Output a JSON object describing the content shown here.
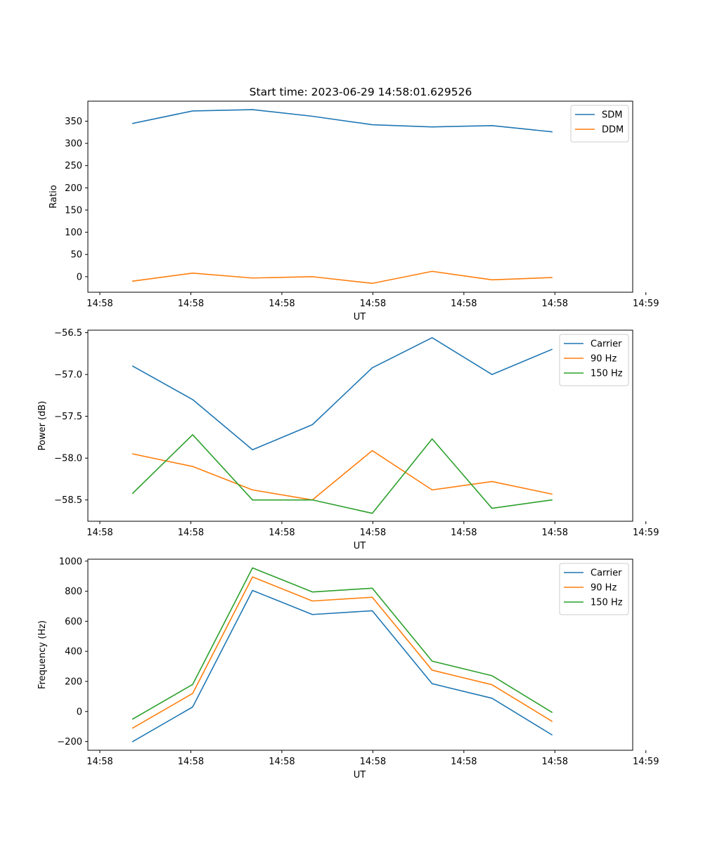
{
  "figure": {
    "title": "Start time: 2023-06-29 14:58:01.629526"
  },
  "chart_data": [
    {
      "type": "line",
      "xlabel": "UT",
      "ylabel": "Ratio",
      "x_tick_labels": [
        "14:58",
        "14:58",
        "14:58",
        "14:58",
        "14:58",
        "14:58",
        "14:59"
      ],
      "y_ticks": [
        0,
        50,
        100,
        150,
        200,
        250,
        300,
        350
      ],
      "ylim": [
        -35,
        395
      ],
      "legend_position": "upper-right",
      "series": [
        {
          "name": "SDM",
          "color": "#1f77b4",
          "values": [
            345,
            373,
            376,
            361,
            342,
            337,
            340,
            326
          ]
        },
        {
          "name": "DDM",
          "color": "#ff7f0e",
          "values": [
            -10,
            8,
            -3,
            0,
            -15,
            12,
            -7,
            -2
          ]
        }
      ]
    },
    {
      "type": "line",
      "xlabel": "UT",
      "ylabel": "Power (dB)",
      "x_tick_labels": [
        "14:58",
        "14:58",
        "14:58",
        "14:58",
        "14:58",
        "14:58",
        "14:59"
      ],
      "y_ticks": [
        -58.5,
        -58.0,
        -57.5,
        -57.0,
        -56.5
      ],
      "y_tick_labels": [
        "−58.5",
        "−58.0",
        "−57.5",
        "−57.0",
        "−56.5"
      ],
      "ylim": [
        -58.755,
        -56.47
      ],
      "legend_position": "upper-right",
      "series": [
        {
          "name": "Carrier",
          "color": "#1f77b4",
          "values": [
            -56.9,
            -57.3,
            -57.9,
            -57.6,
            -56.92,
            -56.56,
            -57.0,
            -56.7
          ]
        },
        {
          "name": "90 Hz",
          "color": "#ff7f0e",
          "values": [
            -57.95,
            -58.1,
            -58.38,
            -58.5,
            -57.91,
            -58.38,
            -58.28,
            -58.43
          ]
        },
        {
          "name": "150 Hz",
          "color": "#2ca02c",
          "values": [
            -58.42,
            -57.72,
            -58.5,
            -58.5,
            -58.66,
            -57.77,
            -58.6,
            -58.5
          ]
        }
      ]
    },
    {
      "type": "line",
      "xlabel": "UT",
      "ylabel": "Frequency (Hz)",
      "x_tick_labels": [
        "14:58",
        "14:58",
        "14:58",
        "14:58",
        "14:58",
        "14:58",
        "14:59"
      ],
      "y_ticks": [
        -200,
        0,
        200,
        400,
        600,
        800,
        1000
      ],
      "y_tick_labels": [
        "−200",
        "0",
        "200",
        "400",
        "600",
        "800",
        "1000"
      ],
      "ylim": [
        -258,
        1013
      ],
      "legend_position": "upper-right",
      "series": [
        {
          "name": "Carrier",
          "color": "#1f77b4",
          "values": [
            -200,
            30,
            805,
            645,
            670,
            185,
            88,
            -155
          ]
        },
        {
          "name": "90 Hz",
          "color": "#ff7f0e",
          "values": [
            -110,
            120,
            895,
            735,
            760,
            275,
            178,
            -65
          ]
        },
        {
          "name": "150 Hz",
          "color": "#2ca02c",
          "values": [
            -50,
            180,
            955,
            795,
            820,
            335,
            238,
            -5
          ]
        }
      ]
    }
  ]
}
